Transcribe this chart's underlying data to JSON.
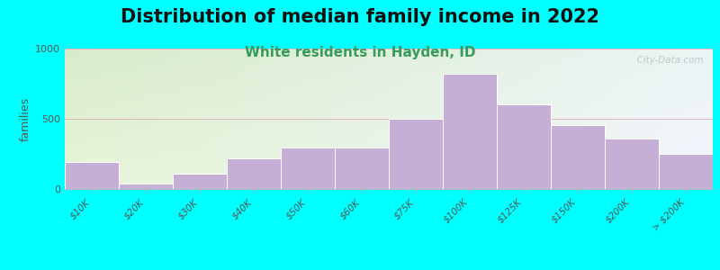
{
  "title": "Distribution of median family income in 2022",
  "subtitle": "White residents in Hayden, ID",
  "ylabel": "families",
  "background_color": "#00FFFF",
  "bar_color": "#c5afd6",
  "bar_edge_color": "#ffffff",
  "categories": [
    "$10K",
    "$20K",
    "$30K",
    "$40K",
    "$50K",
    "$60K",
    "$75K",
    "$100K",
    "$125K",
    "$150K",
    "$200K",
    "> $200K"
  ],
  "values": [
    190,
    40,
    110,
    215,
    295,
    295,
    500,
    820,
    600,
    455,
    360,
    250
  ],
  "ylim": [
    0,
    1000
  ],
  "yticks": [
    0,
    500,
    1000
  ],
  "title_fontsize": 15,
  "subtitle_fontsize": 11,
  "subtitle_color": "#3a9a5c",
  "watermark": "  City-Data.com",
  "grad_top_left": "#d8ecca",
  "grad_top_right": "#eaf5f5",
  "grad_bot_left": "#e8f5d8",
  "grad_bot_right": "#f5f5ff",
  "grid_color": "#e8b0c0",
  "tick_label_color": "#555555"
}
